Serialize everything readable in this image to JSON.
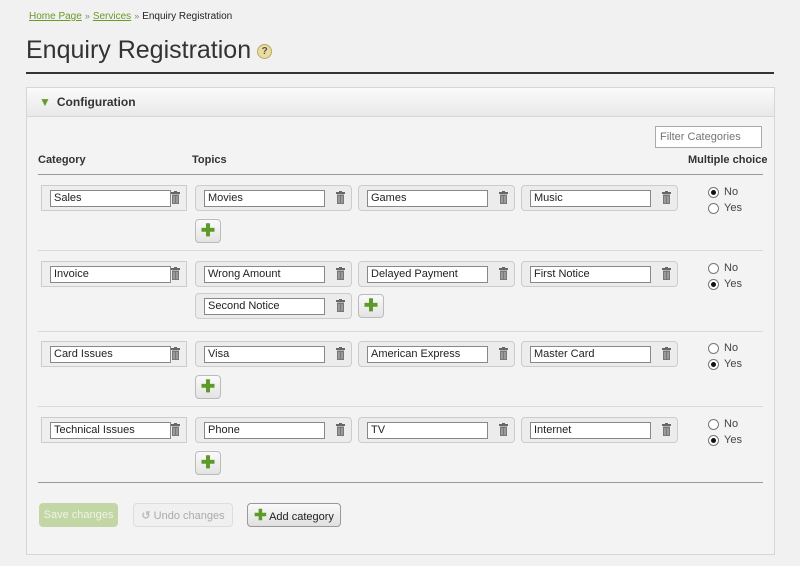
{
  "breadcrumb": {
    "items": [
      "Home Page",
      "Services"
    ],
    "current": "Enquiry Registration"
  },
  "page_title": "Enquiry Registration",
  "help_icon": "?",
  "panel": {
    "title": "Configuration",
    "filter_placeholder": "Filter Categories"
  },
  "headers": {
    "category": "Category",
    "topics": "Topics",
    "multiple": "Multiple choice"
  },
  "radio_labels": {
    "no": "No",
    "yes": "Yes"
  },
  "rows": [
    {
      "category": "Sales",
      "topics": [
        "Movies",
        "Games",
        "Music"
      ],
      "multiple": "No"
    },
    {
      "category": "Invoice",
      "topics": [
        "Wrong Amount",
        "Delayed Payment",
        "First Notice",
        "Second Notice"
      ],
      "multiple": "Yes"
    },
    {
      "category": "Card Issues",
      "topics": [
        "Visa",
        "American Express",
        "Master Card"
      ],
      "multiple": "Yes"
    },
    {
      "category": "Technical Issues",
      "topics": [
        "Phone",
        "TV",
        "Internet"
      ],
      "multiple": "Yes"
    }
  ],
  "buttons": {
    "save": "Save changes",
    "undo": "Undo changes",
    "add_category": "Add category"
  },
  "colors": {
    "accent": "#6a9a2a",
    "save_disabled": "#c3d6a6"
  }
}
